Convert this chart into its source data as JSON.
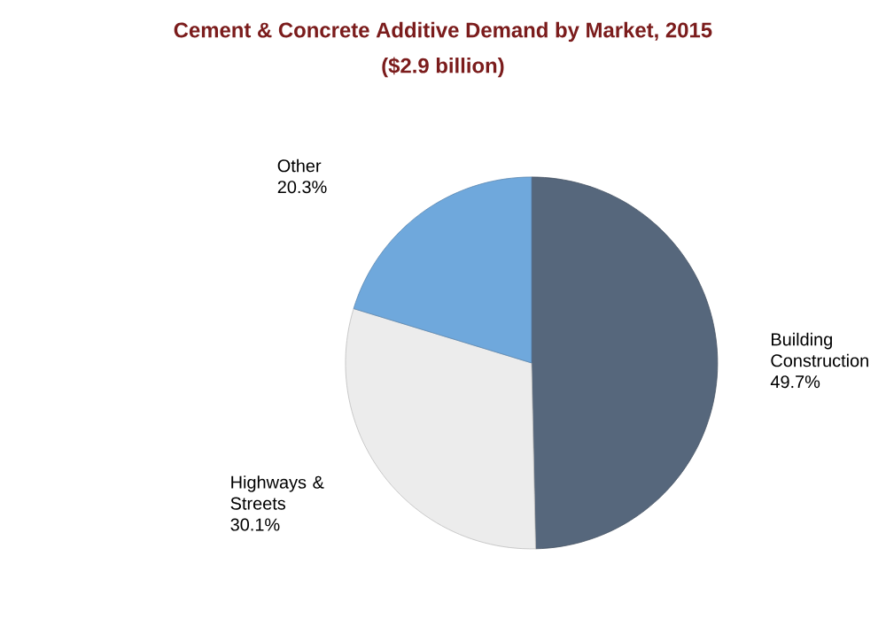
{
  "chart_data": {
    "type": "pie",
    "title": "Cement & Concrete Additive Demand by Market, 2015",
    "subtitle": "($2.9 billion)",
    "categories": [
      "Building Construction",
      "Highways & Streets",
      "Other"
    ],
    "values": [
      49.7,
      30.1,
      20.3
    ],
    "colors": [
      "#56677c",
      "#ececec",
      "#6fa8dc"
    ],
    "value_labels": [
      "49.7%",
      "30.1%",
      "20.3%"
    ]
  }
}
